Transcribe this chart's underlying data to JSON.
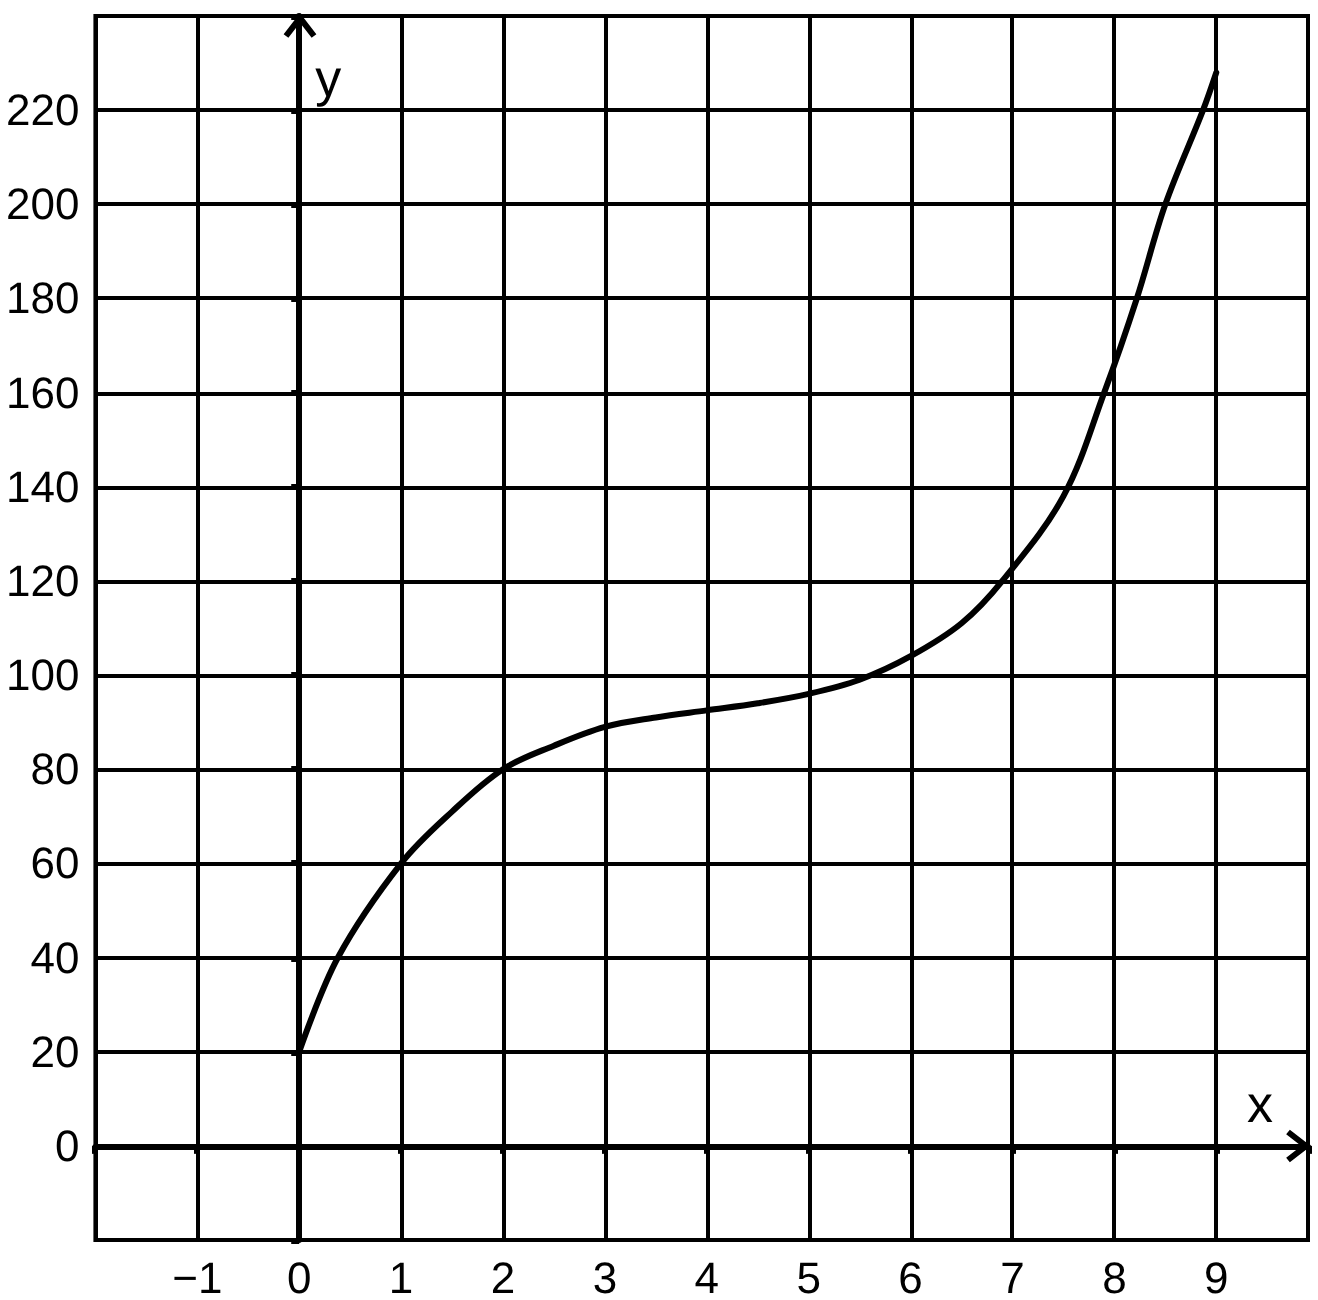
{
  "chart_data": {
    "type": "line",
    "xlabel": "x",
    "ylabel": "y",
    "x": [
      0,
      0.38,
      1,
      1.5,
      2,
      2.5,
      3,
      3.5,
      4,
      4.5,
      5,
      5.5,
      6,
      6.5,
      6.9,
      7.5,
      7.9,
      8.22,
      8.5,
      8.87,
      9
    ],
    "series": [
      {
        "color": "#000000",
        "values": [
          20,
          40,
          60,
          71,
          80,
          85,
          89,
          91,
          92.5,
          94,
          96,
          99,
          104,
          111,
          120,
          138,
          160,
          180,
          200,
          220,
          228
        ]
      }
    ],
    "xlim": [
      -2,
      9.9
    ],
    "ylim": [
      -20,
      240
    ],
    "xticks": [
      -1,
      0,
      1,
      2,
      3,
      4,
      5,
      6,
      7,
      8,
      9
    ],
    "yticks": [
      0,
      20,
      40,
      60,
      80,
      100,
      120,
      140,
      160,
      180,
      200,
      220
    ],
    "grid": true,
    "marker": "none",
    "line_style": "solid"
  }
}
